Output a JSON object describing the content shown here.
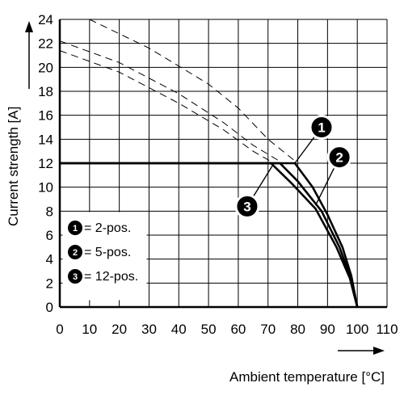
{
  "chart_data": {
    "type": "line",
    "title": "",
    "xlabel": "Ambient temperature [°C]",
    "ylabel": "Current strength [A]",
    "xlim": [
      0,
      110
    ],
    "ylim": [
      0,
      24
    ],
    "xticks": [
      0,
      10,
      20,
      30,
      40,
      50,
      60,
      70,
      80,
      90,
      100,
      110
    ],
    "yticks": [
      0,
      2,
      4,
      6,
      8,
      10,
      12,
      14,
      16,
      18,
      20,
      22,
      24
    ],
    "grid": true,
    "legend_position": "bottom-left",
    "legend": [
      {
        "badge": "1",
        "label": "= 2-pos."
      },
      {
        "badge": "2",
        "label": "= 5-pos."
      },
      {
        "badge": "3",
        "label": "= 12-pos."
      }
    ],
    "series": [
      {
        "badge": "1",
        "style": "solid",
        "points": [
          [
            0,
            12
          ],
          [
            79,
            12
          ],
          [
            85,
            10
          ],
          [
            90,
            7.7
          ],
          [
            95,
            5
          ],
          [
            98,
            2.6
          ],
          [
            100,
            0
          ]
        ]
      },
      {
        "badge": "2",
        "style": "solid",
        "points": [
          [
            0,
            12
          ],
          [
            74,
            12
          ],
          [
            80,
            10.5
          ],
          [
            88,
            8
          ],
          [
            94,
            5
          ],
          [
            98,
            2.3
          ],
          [
            100,
            0
          ]
        ]
      },
      {
        "badge": "3",
        "style": "solid",
        "points": [
          [
            0,
            12
          ],
          [
            71,
            12
          ],
          [
            78,
            10.3
          ],
          [
            86,
            8.2
          ],
          [
            93,
            5
          ],
          [
            97.5,
            2.4
          ],
          [
            100,
            0
          ]
        ]
      },
      {
        "badge": "1",
        "style": "dashed",
        "points": [
          [
            10,
            24
          ],
          [
            30,
            21.6
          ],
          [
            50,
            18.6
          ],
          [
            60,
            16.6
          ],
          [
            70,
            14
          ],
          [
            80,
            12
          ]
        ]
      },
      {
        "badge": "2",
        "style": "dashed",
        "points": [
          [
            0,
            22.2
          ],
          [
            20,
            20.4
          ],
          [
            40,
            17.8
          ],
          [
            55,
            15.4
          ],
          [
            65,
            13.5
          ],
          [
            75,
            12
          ]
        ]
      },
      {
        "badge": "3",
        "style": "dashed",
        "points": [
          [
            0,
            21.4
          ],
          [
            20,
            19.6
          ],
          [
            40,
            17
          ],
          [
            55,
            14.8
          ],
          [
            65,
            13
          ],
          [
            72,
            12
          ]
        ]
      }
    ],
    "callouts": [
      {
        "badge": "1",
        "x": 88,
        "y": 15,
        "target": [
          79,
          12
        ]
      },
      {
        "badge": "2",
        "x": 94,
        "y": 12.5,
        "target": [
          86,
          8.5
        ]
      },
      {
        "badge": "3",
        "x": 63,
        "y": 8.4,
        "target": [
          72,
          12
        ]
      }
    ]
  }
}
